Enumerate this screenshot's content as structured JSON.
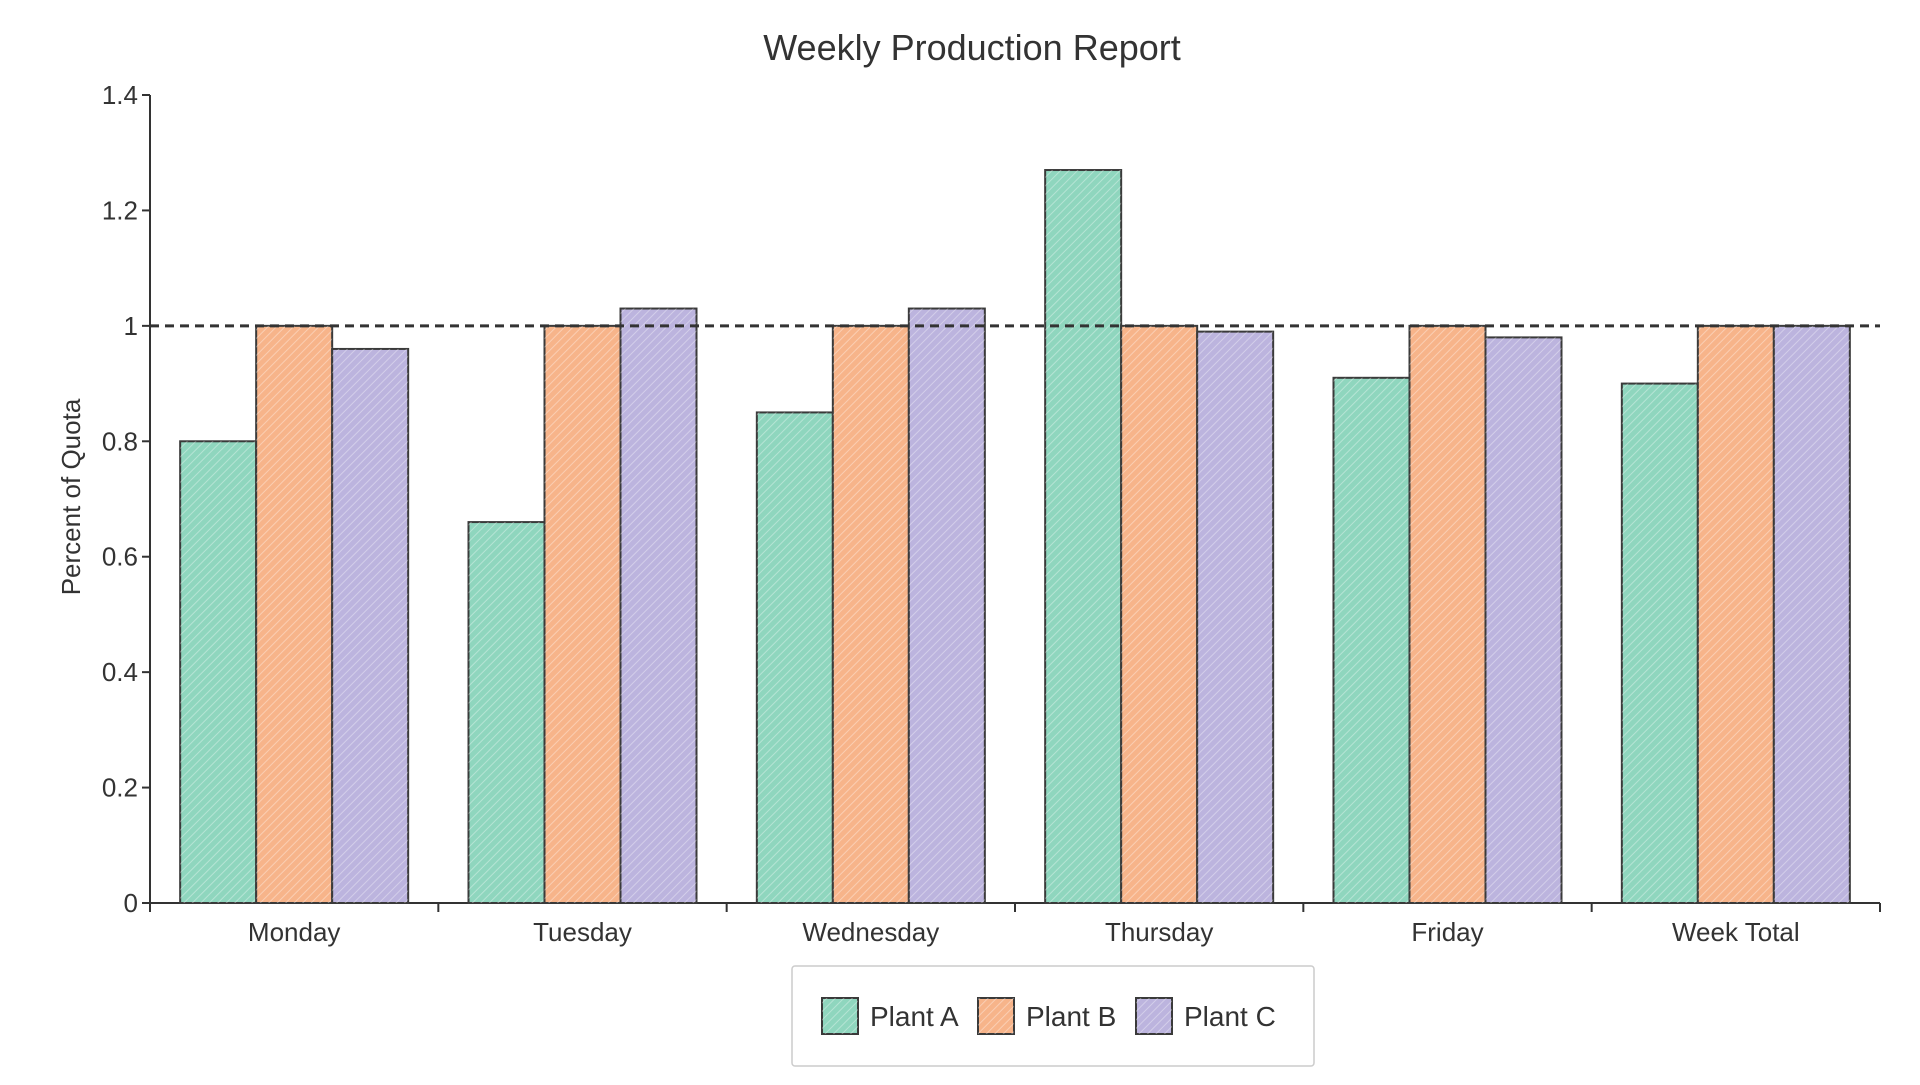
{
  "chart_data": {
    "type": "bar",
    "title": "Weekly Production Report",
    "xlabel": "",
    "ylabel": "Percent of Quota",
    "categories": [
      "Monday",
      "Tuesday",
      "Wednesday",
      "Thursday",
      "Friday",
      "Week Total"
    ],
    "series": [
      {
        "name": "Plant A",
        "color": "#8fd6be",
        "values": [
          0.8,
          0.66,
          0.85,
          1.27,
          0.91,
          0.9
        ]
      },
      {
        "name": "Plant B",
        "color": "#f7b48a",
        "values": [
          1.0,
          1.0,
          1.0,
          1.0,
          1.0,
          1.0
        ]
      },
      {
        "name": "Plant C",
        "color": "#bcb4de",
        "values": [
          0.96,
          1.03,
          1.03,
          0.99,
          0.98,
          1.0
        ]
      }
    ],
    "ylim": [
      0,
      1.4
    ],
    "yticks": [
      0,
      0.2,
      0.4,
      0.6,
      0.8,
      1,
      1.2,
      1.4
    ],
    "ytick_labels": [
      "0",
      "0.2",
      "0.4",
      "0.6",
      "0.8",
      "1",
      "1.2",
      "1.4"
    ],
    "reference_line": {
      "value": 1,
      "style": "dashed"
    },
    "grid": false,
    "legend": "bottom-center"
  }
}
